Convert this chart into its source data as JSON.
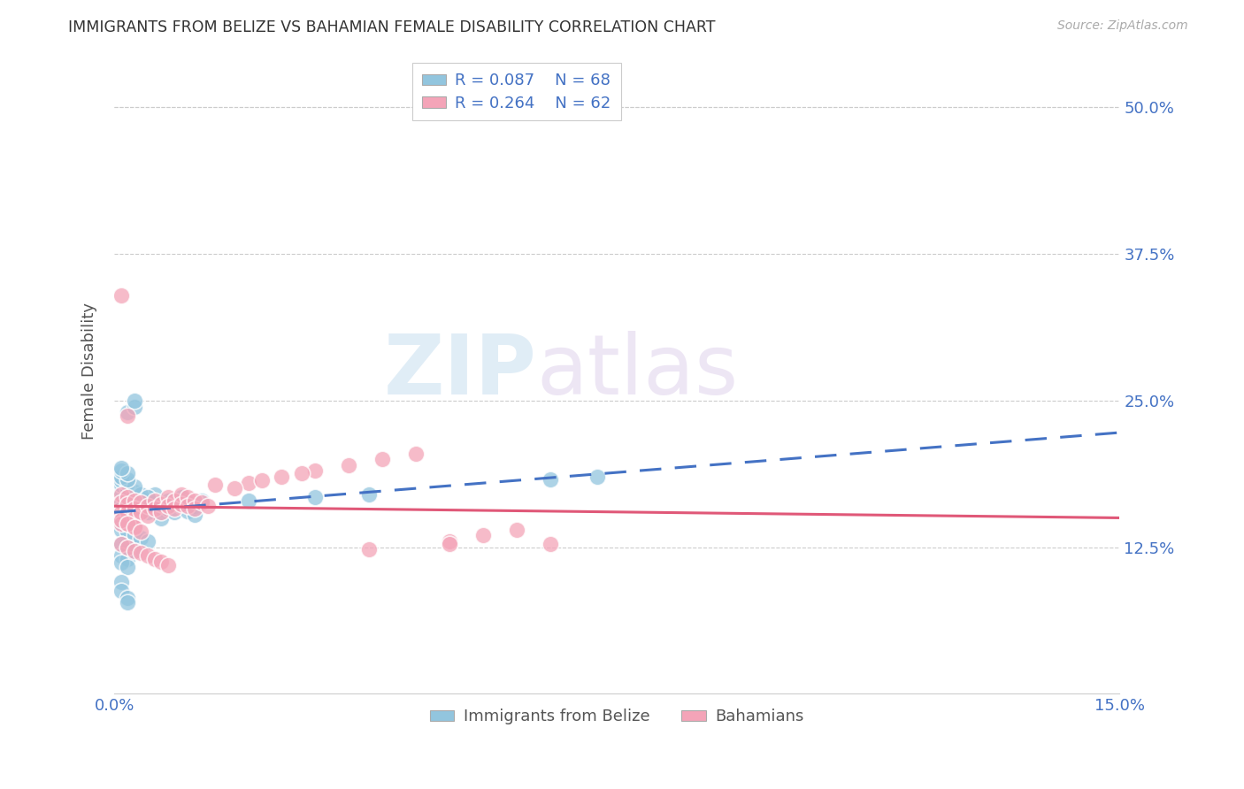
{
  "title": "IMMIGRANTS FROM BELIZE VS BAHAMIAN FEMALE DISABILITY CORRELATION CHART",
  "source": "Source: ZipAtlas.com",
  "ylabel": "Female Disability",
  "ytick_labels": [
    "12.5%",
    "25.0%",
    "37.5%",
    "50.0%"
  ],
  "ytick_values": [
    0.125,
    0.25,
    0.375,
    0.5
  ],
  "xlim": [
    0.0,
    0.15
  ],
  "ylim": [
    0.0,
    0.55
  ],
  "legend_r1": "R = 0.087",
  "legend_n1": "N = 68",
  "legend_r2": "R = 0.264",
  "legend_n2": "N = 62",
  "color_blue": "#92c5de",
  "color_pink": "#f4a4b8",
  "color_blue_text": "#4472c4",
  "color_pink_text": "#e05878",
  "watermark_zip": "ZIP",
  "watermark_atlas": "atlas",
  "belize_x": [
    0.001,
    0.001,
    0.001,
    0.001,
    0.002,
    0.002,
    0.002,
    0.002,
    0.003,
    0.003,
    0.003,
    0.003,
    0.004,
    0.004,
    0.005,
    0.005,
    0.006,
    0.006,
    0.007,
    0.007,
    0.008,
    0.008,
    0.009,
    0.009,
    0.01,
    0.01,
    0.011,
    0.011,
    0.012,
    0.012,
    0.001,
    0.001,
    0.002,
    0.002,
    0.003,
    0.003,
    0.004,
    0.004,
    0.005,
    0.005,
    0.001,
    0.001,
    0.002,
    0.002,
    0.003,
    0.003,
    0.001,
    0.001,
    0.002,
    0.002,
    0.001,
    0.001,
    0.002,
    0.002,
    0.001,
    0.02,
    0.03,
    0.038,
    0.065,
    0.072,
    0.001,
    0.001,
    0.002,
    0.002,
    0.002,
    0.003,
    0.003,
    0.013
  ],
  "belize_y": [
    0.165,
    0.172,
    0.158,
    0.148,
    0.17,
    0.163,
    0.155,
    0.145,
    0.168,
    0.16,
    0.152,
    0.143,
    0.166,
    0.158,
    0.162,
    0.155,
    0.17,
    0.163,
    0.158,
    0.15,
    0.165,
    0.158,
    0.162,
    0.155,
    0.168,
    0.16,
    0.163,
    0.156,
    0.16,
    0.153,
    0.178,
    0.14,
    0.175,
    0.138,
    0.172,
    0.135,
    0.17,
    0.133,
    0.168,
    0.13,
    0.182,
    0.128,
    0.18,
    0.125,
    0.177,
    0.122,
    0.185,
    0.118,
    0.183,
    0.115,
    0.19,
    0.112,
    0.188,
    0.108,
    0.193,
    0.165,
    0.168,
    0.17,
    0.183,
    0.185,
    0.095,
    0.088,
    0.082,
    0.078,
    0.24,
    0.245,
    0.25,
    0.165
  ],
  "bahamas_x": [
    0.001,
    0.001,
    0.001,
    0.001,
    0.002,
    0.002,
    0.002,
    0.002,
    0.003,
    0.003,
    0.003,
    0.003,
    0.004,
    0.004,
    0.005,
    0.005,
    0.006,
    0.006,
    0.007,
    0.007,
    0.008,
    0.008,
    0.009,
    0.009,
    0.01,
    0.01,
    0.011,
    0.011,
    0.012,
    0.012,
    0.013,
    0.014,
    0.015,
    0.02,
    0.025,
    0.03,
    0.018,
    0.022,
    0.028,
    0.035,
    0.04,
    0.045,
    0.05,
    0.055,
    0.06,
    0.065,
    0.001,
    0.002,
    0.003,
    0.004,
    0.001,
    0.002,
    0.003,
    0.004,
    0.005,
    0.006,
    0.007,
    0.008,
    0.038,
    0.05,
    0.001,
    0.002
  ],
  "bahamas_y": [
    0.17,
    0.163,
    0.155,
    0.145,
    0.168,
    0.162,
    0.155,
    0.145,
    0.165,
    0.158,
    0.15,
    0.143,
    0.163,
    0.155,
    0.16,
    0.152,
    0.165,
    0.158,
    0.162,
    0.155,
    0.168,
    0.16,
    0.165,
    0.158,
    0.17,
    0.162,
    0.168,
    0.16,
    0.165,
    0.158,
    0.163,
    0.16,
    0.178,
    0.18,
    0.185,
    0.19,
    0.175,
    0.182,
    0.188,
    0.195,
    0.2,
    0.205,
    0.13,
    0.135,
    0.14,
    0.128,
    0.148,
    0.145,
    0.142,
    0.138,
    0.128,
    0.125,
    0.122,
    0.12,
    0.118,
    0.115,
    0.113,
    0.11,
    0.123,
    0.128,
    0.34,
    0.237
  ]
}
